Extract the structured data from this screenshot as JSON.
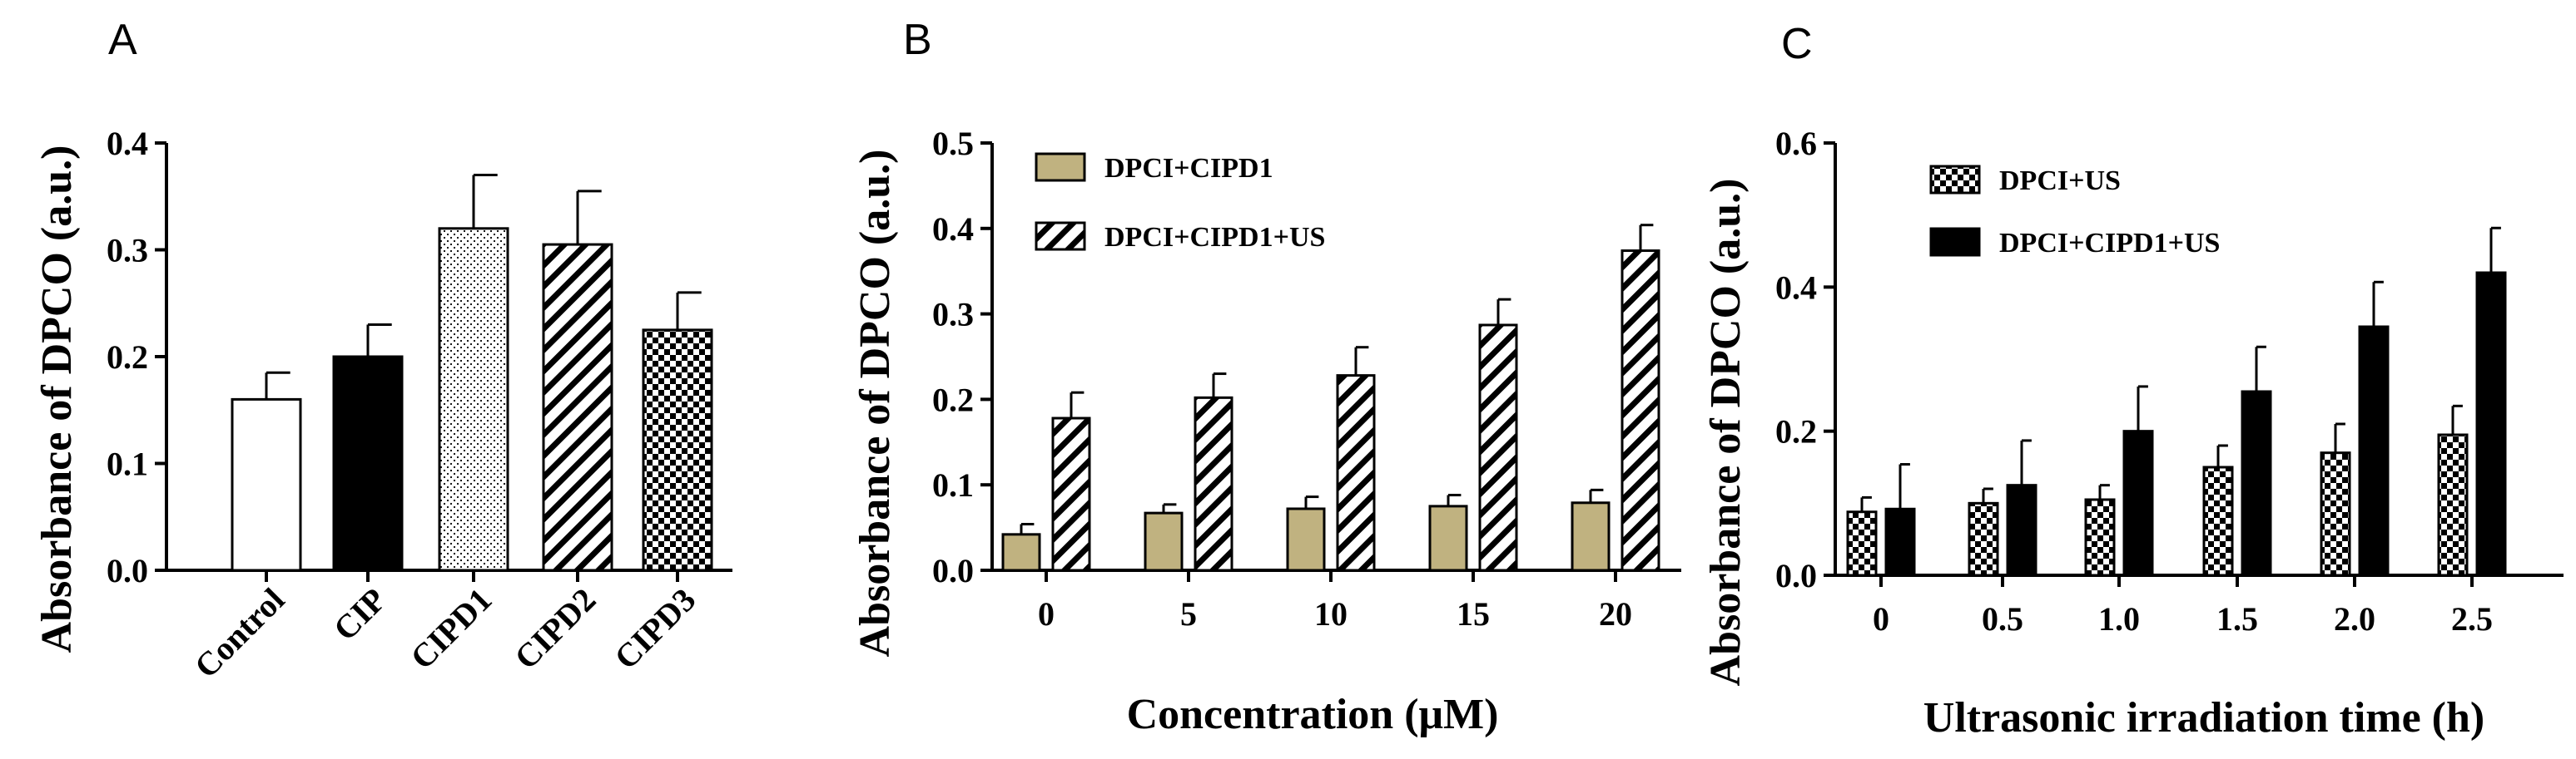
{
  "colors": {
    "olive": "#c0b280",
    "black": "#000000",
    "white": "#ffffff"
  },
  "chart_data": [
    {
      "type": "bar",
      "panel_label": "A",
      "ylabel": "Absorbance of DPCO (a.u.)",
      "xlabel": "",
      "ylim": [
        0,
        0.4
      ],
      "yticks": [
        "0.0",
        "0.1",
        "0.2",
        "0.3",
        "0.4"
      ],
      "categories": [
        "Control",
        "CIP",
        "CIPD1",
        "CIPD2",
        "CIPD3"
      ],
      "values": [
        0.16,
        0.2,
        0.32,
        0.305,
        0.225
      ],
      "errors": [
        0.025,
        0.03,
        0.05,
        0.05,
        0.035
      ],
      "fills": [
        "white",
        "solid-black",
        "dots",
        "diagonal-hatch",
        "checker"
      ]
    },
    {
      "type": "bar",
      "panel_label": "B",
      "ylabel": "Absorbance of DPCO (a.u.)",
      "xlabel": "Concentration (μM)",
      "ylim": [
        0,
        0.5
      ],
      "yticks": [
        "0.0",
        "0.1",
        "0.2",
        "0.3",
        "0.4",
        "0.5"
      ],
      "categories": [
        "0",
        "5",
        "10",
        "15",
        "20"
      ],
      "series": [
        {
          "name": "DPCI+CIPD1",
          "values": [
            0.042,
            0.067,
            0.072,
            0.075,
            0.079
          ],
          "errors": [
            0.012,
            0.01,
            0.014,
            0.013,
            0.015
          ],
          "fill": "olive"
        },
        {
          "name": "DPCI+CIPD1+US",
          "values": [
            0.178,
            0.202,
            0.228,
            0.287,
            0.374
          ],
          "errors": [
            0.03,
            0.028,
            0.033,
            0.03,
            0.03
          ],
          "fill": "diagonal-hatch"
        }
      ],
      "legend_position": "top-left"
    },
    {
      "type": "bar",
      "panel_label": "C",
      "ylabel": "Absorbance of DPCO (a.u.)",
      "xlabel": "Ultrasonic irradiation time (h)",
      "ylim": [
        0,
        0.6
      ],
      "yticks": [
        "0.0",
        "0.2",
        "0.4",
        "0.6"
      ],
      "categories": [
        "0",
        "0.5",
        "1.0",
        "1.5",
        "2.0",
        "2.5"
      ],
      "series": [
        {
          "name": "DPCI+US",
          "values": [
            0.088,
            0.1,
            0.105,
            0.15,
            0.17,
            0.195
          ],
          "errors": [
            0.02,
            0.02,
            0.02,
            0.03,
            0.04,
            0.04
          ],
          "fill": "checker"
        },
        {
          "name": "DPCI+CIPD1+US",
          "values": [
            0.092,
            0.125,
            0.2,
            0.255,
            0.345,
            0.42
          ],
          "errors": [
            0.062,
            0.062,
            0.062,
            0.062,
            0.062,
            0.062
          ],
          "fill": "solid-black"
        }
      ],
      "legend_position": "top-left"
    }
  ]
}
